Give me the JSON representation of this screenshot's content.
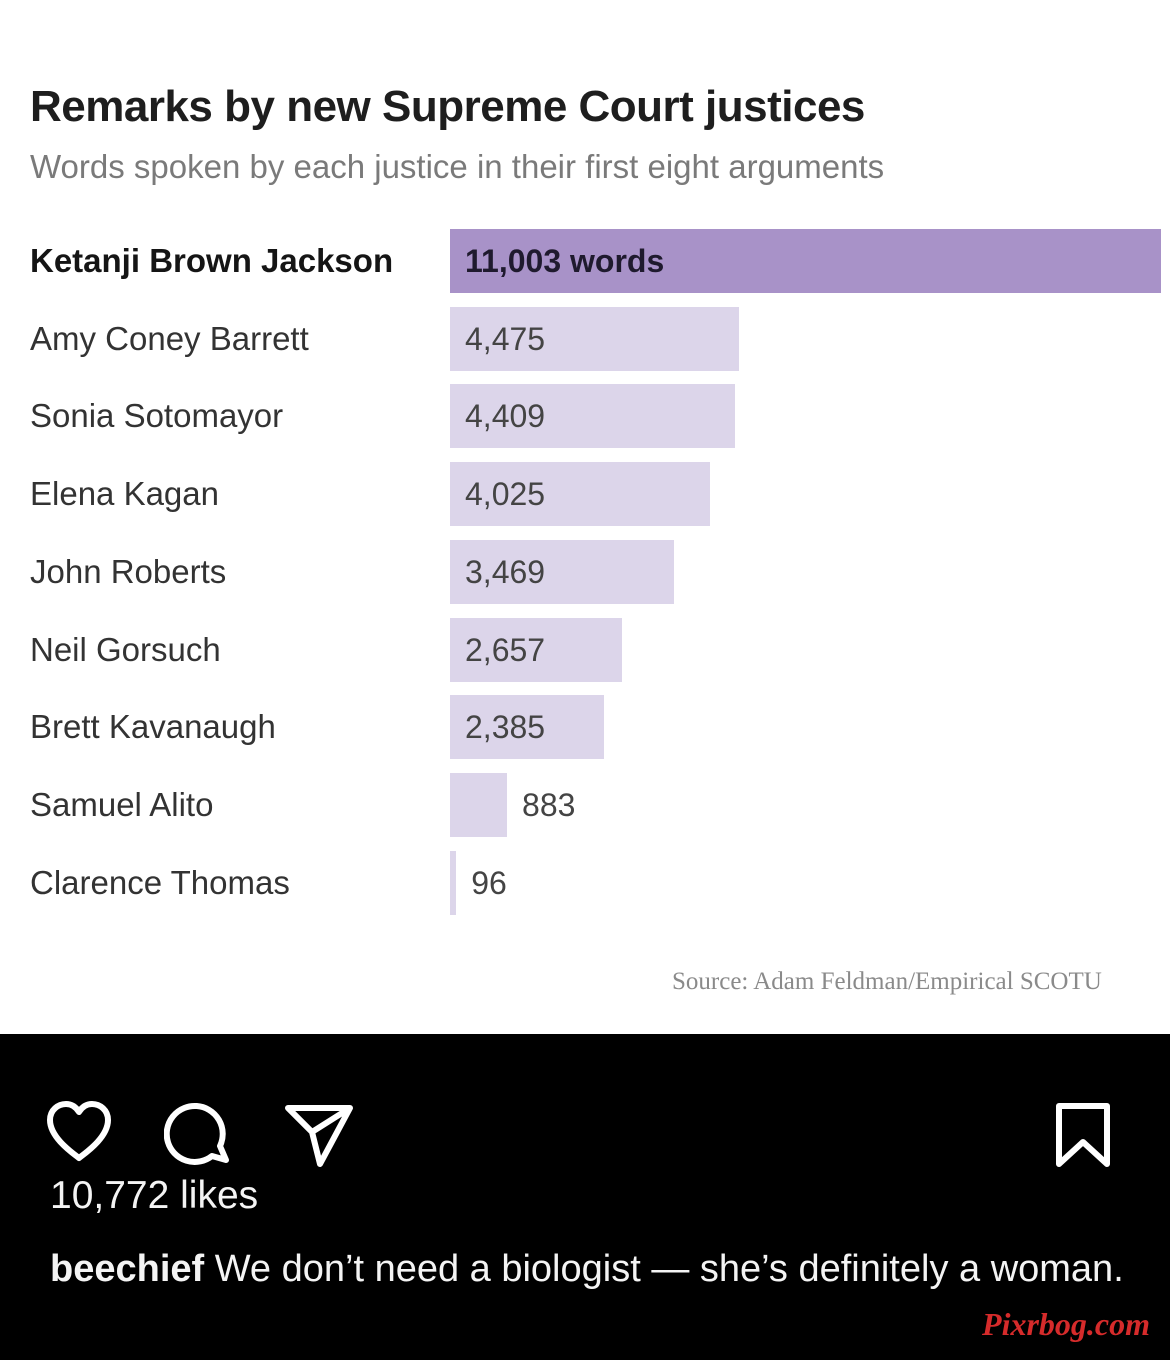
{
  "post": {
    "chart_image": {
      "chart_data": {
        "type": "bar",
        "orientation": "horizontal",
        "title": "Remarks by new Supreme Court justices",
        "subtitle": "Words spoken by each justice in their first eight arguments",
        "categories": [
          "Ketanji Brown Jackson",
          "Amy Coney Barrett",
          "Sonia Sotomayor",
          "Elena Kagan",
          "John Roberts",
          "Neil Gorsuch",
          "Brett Kavanaugh",
          "Samuel Alito",
          "Clarence Thomas"
        ],
        "values": [
          11003,
          4475,
          4409,
          4025,
          3469,
          2657,
          2385,
          883,
          96
        ],
        "value_labels": [
          "11,003 words",
          "4,475",
          "4,409",
          "4,025",
          "3,469",
          "2,657",
          "2,385",
          "883",
          "96"
        ],
        "highlighted_category": "Ketanji Brown Jackson",
        "xlim": [
          0,
          11003
        ],
        "grid": false,
        "legend": "none",
        "source": "Source: Adam Feldman/Empirical SCOTU",
        "colors": {
          "highlight_bar": "#a892c8",
          "bar": "#dcd5ea"
        }
      }
    },
    "actions": {
      "like_icon": "heart-outline-icon",
      "comment_icon": "speech-bubble-icon",
      "share_icon": "paper-plane-icon",
      "save_icon": "bookmark-outline-icon"
    },
    "likes_text": "10,772 likes",
    "caption": {
      "username": "beechief",
      "text": "We don’t need a biologist — she’s definitely a woman."
    },
    "watermark": "Pixrbog.com"
  }
}
